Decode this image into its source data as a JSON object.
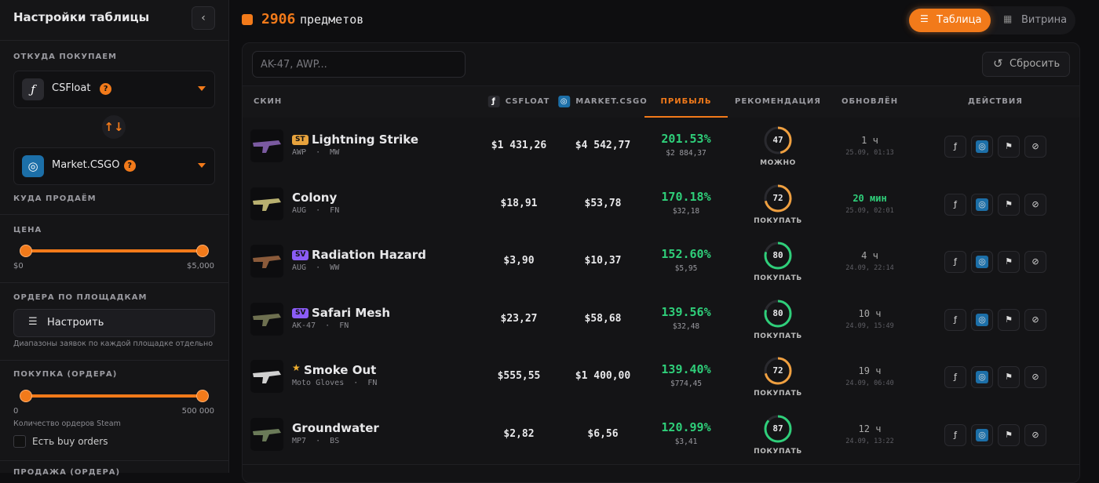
{
  "sidebar": {
    "title": "Настройки таблицы",
    "help_icon": "?",
    "buy_from": {
      "label": "ОТКУДА ПОКУПАЕМ",
      "source": "CSFloat",
      "target": "Market.CSGO"
    },
    "sell_to": {
      "label": "КУДА ПРОДАЁМ"
    },
    "price": {
      "label": "ЦЕНА",
      "min": "$0",
      "max": "$5,000"
    },
    "orders": {
      "label": "ОРДЕРА ПО ПЛОЩАДКАМ",
      "button": "Настроить",
      "hint": "Диапазоны заявок по каждой площадке отдельно"
    },
    "purchase": {
      "label": "ПОКУПКА (ОРДЕРА)",
      "min": "0",
      "max": "500 000",
      "hint": "Количество ордеров Steam",
      "checkbox": "Есть buy orders"
    },
    "sale": {
      "label": "ПРОДАЖА (ОРДЕРА)"
    }
  },
  "header": {
    "count": "2906",
    "count_label": "предметов",
    "tabs": [
      "Таблица",
      "Витрина"
    ]
  },
  "toolbar": {
    "search_placeholder": "AK-47, AWP...",
    "reset": "Сбросить"
  },
  "table": {
    "columns": [
      "СКИН",
      "CSFLOAT",
      "MARKET.CSGO",
      "ПРИБЫЛЬ",
      "РЕКОМЕНДАЦИЯ",
      "ОБНОВЛЁН",
      "ДЕЙСТВИЯ"
    ],
    "rows": [
      {
        "badge": "ST",
        "badge_color": "#e8a33d",
        "name": "Lightning Strike",
        "weapon": "AWP",
        "wear": "MW",
        "csfloat": "$1 431,26",
        "market": "$4 542,77",
        "profit_pct": "201.53%",
        "profit": "$2 884,37",
        "score": 47,
        "score_color": "#f0a040",
        "recommendation": "МОЖНО",
        "updated": "1 ч",
        "updated_at": "25.09, 01:13",
        "fresh": false
      },
      {
        "badge": null,
        "badge_color": null,
        "name": "Colony",
        "weapon": "AUG",
        "wear": "FN",
        "csfloat": "$18,91",
        "market": "$53,78",
        "profit_pct": "170.18%",
        "profit": "$32,18",
        "score": 72,
        "score_color": "#f0a040",
        "recommendation": "ПОКУПАТЬ",
        "updated": "20 мин",
        "updated_at": "25.09, 02:01",
        "fresh": true
      },
      {
        "badge": "SV",
        "badge_color": "#8b5cf6",
        "name": "Radiation Hazard",
        "weapon": "AUG",
        "wear": "WW",
        "csfloat": "$3,90",
        "market": "$10,37",
        "profit_pct": "152.60%",
        "profit": "$5,95",
        "score": 80,
        "score_color": "#2fcf7a",
        "recommendation": "ПОКУПАТЬ",
        "updated": "4 ч",
        "updated_at": "24.09, 22:14",
        "fresh": false
      },
      {
        "badge": "SV",
        "badge_color": "#8b5cf6",
        "name": "Safari Mesh",
        "weapon": "AK-47",
        "wear": "FN",
        "csfloat": "$23,27",
        "market": "$58,68",
        "profit_pct": "139.56%",
        "profit": "$32,48",
        "score": 80,
        "score_color": "#2fcf7a",
        "recommendation": "ПОКУПАТЬ",
        "updated": "10 ч",
        "updated_at": "24.09, 15:49",
        "fresh": false
      },
      {
        "badge": "★",
        "badge_color": null,
        "name": "Smoke Out",
        "weapon": "Moto Gloves",
        "wear": "FN",
        "csfloat": "$555,55",
        "market": "$1 400,00",
        "profit_pct": "139.40%",
        "profit": "$774,45",
        "score": 72,
        "score_color": "#f0a040",
        "recommendation": "ПОКУПАТЬ",
        "updated": "19 ч",
        "updated_at": "24.09, 06:40",
        "fresh": false
      },
      {
        "badge": null,
        "badge_color": null,
        "name": "Groundwater",
        "weapon": "MP7",
        "wear": "BS",
        "csfloat": "$2,82",
        "market": "$6,56",
        "profit_pct": "120.99%",
        "profit": "$3,41",
        "score": 87,
        "score_color": "#2fcf7a",
        "recommendation": "ПОКУПАТЬ",
        "updated": "12 ч",
        "updated_at": "24.09, 13:22",
        "fresh": false
      }
    ]
  }
}
